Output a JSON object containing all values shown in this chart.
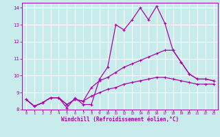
{
  "title": "",
  "xlabel": "Windchill (Refroidissement éolien,°C)",
  "ylabel": "",
  "bg_color": "#c8ecec",
  "line_color": "#aa00aa",
  "grid_color": "#ffffff",
  "xlim": [
    -0.5,
    23.5
  ],
  "ylim": [
    8,
    14.3
  ],
  "xticks": [
    0,
    1,
    2,
    3,
    4,
    5,
    6,
    7,
    8,
    9,
    10,
    11,
    12,
    13,
    14,
    15,
    16,
    17,
    18,
    19,
    20,
    21,
    22,
    23
  ],
  "yticks": [
    8,
    9,
    10,
    11,
    12,
    13,
    14
  ],
  "line1_x": [
    0,
    1,
    2,
    3,
    4,
    5,
    6,
    7,
    8,
    9,
    10,
    11,
    12,
    13,
    14,
    15,
    16,
    17,
    18,
    19,
    20,
    21,
    22,
    23
  ],
  "line1_y": [
    8.6,
    8.2,
    8.4,
    8.7,
    8.7,
    8.1,
    8.7,
    8.3,
    8.3,
    9.8,
    10.5,
    13.0,
    12.7,
    13.3,
    14.0,
    13.3,
    14.1,
    13.1,
    11.5,
    10.8,
    10.1,
    9.8,
    9.8,
    9.7
  ],
  "line2_x": [
    0,
    1,
    2,
    3,
    4,
    5,
    6,
    7,
    8,
    9,
    10,
    11,
    12,
    13,
    14,
    15,
    16,
    17,
    18,
    19,
    20,
    21,
    22,
    23
  ],
  "line2_y": [
    8.6,
    8.2,
    8.4,
    8.7,
    8.7,
    8.3,
    8.6,
    8.5,
    9.3,
    9.7,
    9.9,
    10.2,
    10.5,
    10.7,
    10.9,
    11.1,
    11.3,
    11.5,
    11.5,
    10.8,
    10.1,
    9.8,
    9.8,
    9.7
  ],
  "line3_x": [
    0,
    1,
    2,
    3,
    4,
    5,
    6,
    7,
    8,
    9,
    10,
    11,
    12,
    13,
    14,
    15,
    16,
    17,
    18,
    19,
    20,
    21,
    22,
    23
  ],
  "line3_y": [
    8.6,
    8.2,
    8.4,
    8.7,
    8.7,
    8.3,
    8.6,
    8.5,
    8.8,
    9.0,
    9.2,
    9.3,
    9.5,
    9.6,
    9.7,
    9.8,
    9.9,
    9.9,
    9.8,
    9.7,
    9.6,
    9.5,
    9.5,
    9.5
  ]
}
